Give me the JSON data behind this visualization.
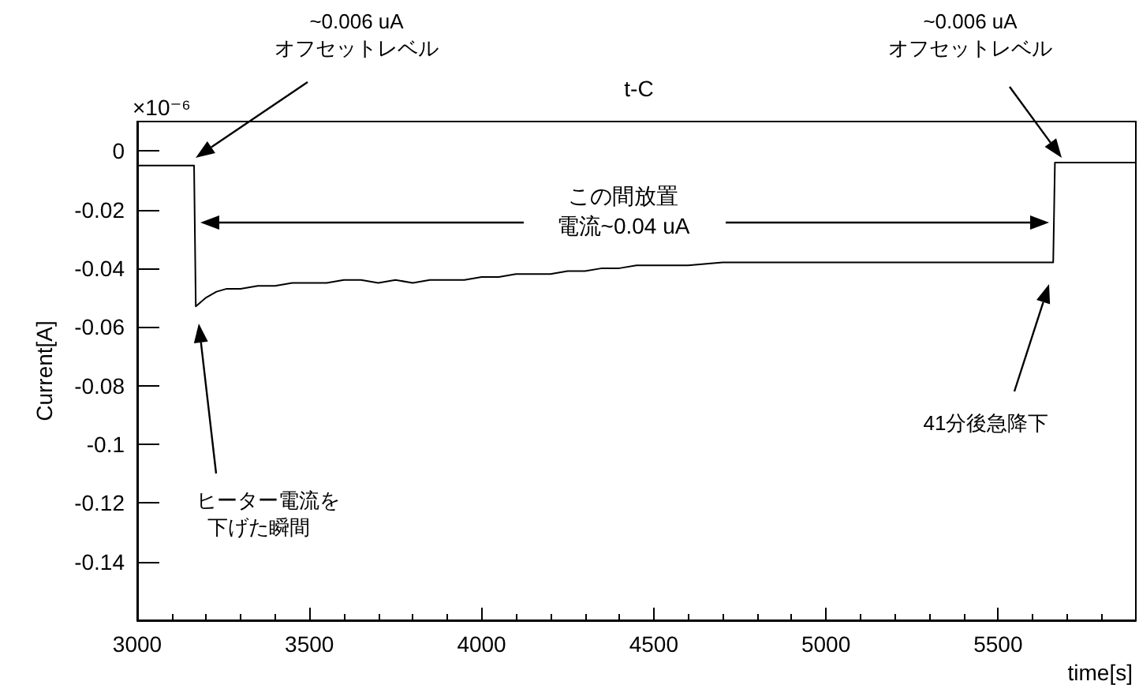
{
  "chart_data": {
    "type": "line",
    "title": "t-C",
    "xlabel": "time[s]",
    "ylabel": "Current[A]",
    "x": [
      3000,
      3050,
      3100,
      3165,
      3170,
      3180,
      3200,
      3230,
      3260,
      3300,
      3350,
      3400,
      3450,
      3500,
      3550,
      3600,
      3650,
      3700,
      3750,
      3800,
      3850,
      3900,
      3950,
      4000,
      4050,
      4100,
      4150,
      4200,
      4250,
      4300,
      4350,
      4400,
      4450,
      4500,
      4600,
      4700,
      4800,
      4900,
      5000,
      5100,
      5200,
      5300,
      5400,
      5500,
      5600,
      5660,
      5665,
      5700,
      5800,
      5900
    ],
    "series": [
      {
        "color": "#000000",
        "values": [
          -0.005,
          -0.005,
          -0.005,
          -0.005,
          -0.053,
          -0.052,
          -0.05,
          -0.048,
          -0.047,
          -0.047,
          -0.046,
          -0.046,
          -0.045,
          -0.045,
          -0.045,
          -0.044,
          -0.044,
          -0.045,
          -0.044,
          -0.045,
          -0.044,
          -0.044,
          -0.044,
          -0.043,
          -0.043,
          -0.042,
          -0.042,
          -0.042,
          -0.041,
          -0.041,
          -0.04,
          -0.04,
          -0.039,
          -0.039,
          -0.039,
          -0.038,
          -0.038,
          -0.038,
          -0.038,
          -0.038,
          -0.038,
          -0.038,
          -0.038,
          -0.038,
          -0.038,
          -0.038,
          -0.004,
          -0.004,
          -0.004,
          -0.004
        ]
      }
    ],
    "xlim": [
      3000,
      5900
    ],
    "xticks": [
      3000,
      3500,
      4000,
      4500,
      5000,
      5500
    ],
    "ylim": [
      -0.16,
      0.01
    ],
    "yticks": [
      0,
      -0.02,
      -0.04,
      -0.06,
      -0.08,
      -0.1,
      -0.12,
      -0.14
    ],
    "grid": false,
    "marker": "none",
    "line_style": "solid",
    "annotations": [
      "×10⁻⁶",
      "~0.006 uA\nオフセットレベル",
      "~0.006 uA\nオフセットレベル",
      "この間放置",
      "電流~0.04 uA",
      "ヒーター電流を",
      "下げた瞬間",
      "41分後急降下"
    ]
  }
}
